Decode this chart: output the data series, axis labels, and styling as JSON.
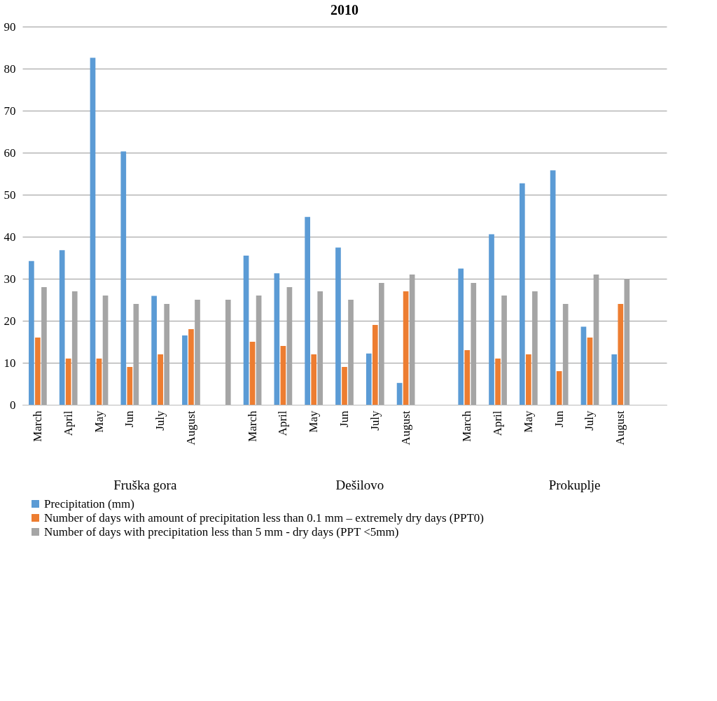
{
  "chart_data": {
    "type": "bar",
    "title": "2010",
    "categories": [
      "March",
      "April",
      "May",
      "Jun",
      "July",
      "August",
      null,
      "March",
      "April",
      "May",
      "Jun",
      "July",
      "August",
      null,
      "March",
      "April",
      "May",
      "Jun",
      "July",
      "August",
      null
    ],
    "annotations": [
      "Fruška gora",
      "Dešilovo",
      "Prokuplje"
    ],
    "series": [
      {
        "name": "Precipitation (mm)",
        "color": "#5b9bd5",
        "values": [
          34.2,
          36.8,
          82.6,
          60.3,
          25.9,
          16.5,
          null,
          35.5,
          31.3,
          44.7,
          37.4,
          12.2,
          5.2,
          null,
          32.4,
          40.6,
          52.7,
          55.8,
          18.6,
          12,
          null
        ]
      },
      {
        "name": "Number of days with amount of precipitation less than 0.1 mm – extremely dry days (PPT0)",
        "color": "#ed7d31",
        "values": [
          16,
          11,
          11,
          9,
          12,
          18,
          null,
          15,
          14,
          12,
          9,
          19,
          27,
          null,
          13,
          11,
          12,
          8,
          16,
          24,
          null
        ]
      },
      {
        "name": "Number of days with precipitation less than 5 mm - dry days (PPT <5mm)",
        "color": "#a5a5a5",
        "values": [
          28,
          27,
          26,
          24,
          24,
          25,
          25,
          26,
          28,
          27,
          25,
          29,
          31,
          null,
          29,
          26,
          27,
          24,
          31,
          30,
          null
        ]
      }
    ],
    "ylim": [
      0,
      90
    ],
    "yticks": [
      0,
      10,
      20,
      30,
      40,
      50,
      60,
      70,
      80,
      90
    ],
    "grid": "y",
    "legend": "bottom"
  }
}
